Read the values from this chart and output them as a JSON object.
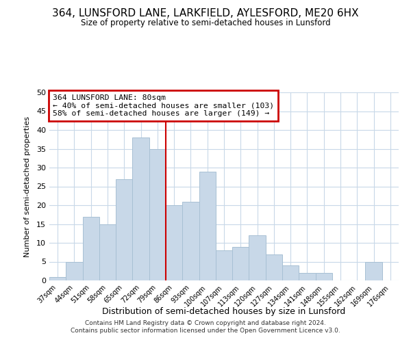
{
  "title": "364, LUNSFORD LANE, LARKFIELD, AYLESFORD, ME20 6HX",
  "subtitle": "Size of property relative to semi-detached houses in Lunsford",
  "xlabel": "Distribution of semi-detached houses by size in Lunsford",
  "ylabel": "Number of semi-detached properties",
  "categories": [
    "37sqm",
    "44sqm",
    "51sqm",
    "58sqm",
    "65sqm",
    "72sqm",
    "79sqm",
    "86sqm",
    "93sqm",
    "100sqm",
    "107sqm",
    "113sqm",
    "120sqm",
    "127sqm",
    "134sqm",
    "141sqm",
    "148sqm",
    "155sqm",
    "162sqm",
    "169sqm",
    "176sqm"
  ],
  "values": [
    1,
    5,
    17,
    15,
    27,
    38,
    35,
    20,
    21,
    29,
    8,
    9,
    12,
    7,
    4,
    2,
    2,
    0,
    0,
    5,
    0
  ],
  "bar_color": "#c8d8e8",
  "bar_edgecolor": "#a8c0d4",
  "bar_width": 1.0,
  "ylim": [
    0,
    50
  ],
  "yticks": [
    0,
    5,
    10,
    15,
    20,
    25,
    30,
    35,
    40,
    45,
    50
  ],
  "redline_index": 6,
  "redline_color": "#cc0000",
  "annotation_title": "364 LUNSFORD LANE: 80sqm",
  "annotation_line1": "← 40% of semi-detached houses are smaller (103)",
  "annotation_line2": "58% of semi-detached houses are larger (149) →",
  "annotation_boxcolor": "#ffffff",
  "annotation_edgecolor": "#cc0000",
  "footer1": "Contains HM Land Registry data © Crown copyright and database right 2024.",
  "footer2": "Contains public sector information licensed under the Open Government Licence v3.0.",
  "background_color": "#ffffff",
  "grid_color": "#c8d8e8"
}
